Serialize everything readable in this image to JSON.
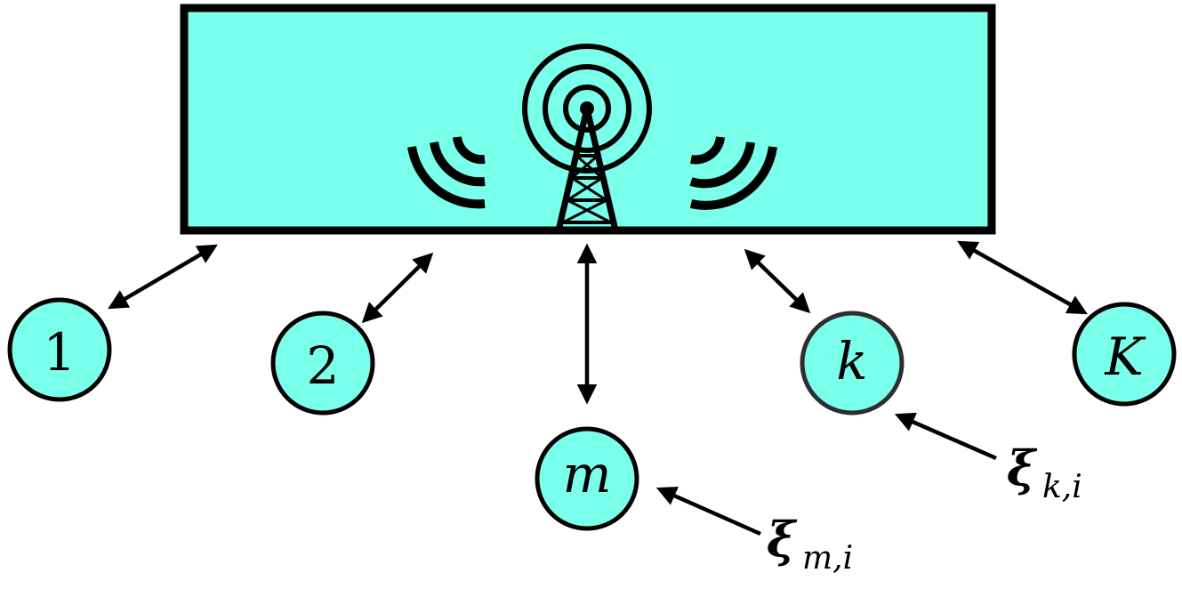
{
  "diagram": {
    "server": {
      "icon": "antenna-tower-icon",
      "color": "#79FFEA"
    },
    "nodes": [
      {
        "id": "node-1",
        "label": "1"
      },
      {
        "id": "node-2",
        "label": "2"
      },
      {
        "id": "node-m",
        "label": "m"
      },
      {
        "id": "node-k",
        "label": "k"
      },
      {
        "id": "node-K",
        "label": "K"
      }
    ],
    "noise": [
      {
        "id": "noise-m",
        "symbol": "ξ",
        "subscript": "m,i"
      },
      {
        "id": "noise-k",
        "symbol": "ξ",
        "subscript": "k,i"
      }
    ]
  }
}
